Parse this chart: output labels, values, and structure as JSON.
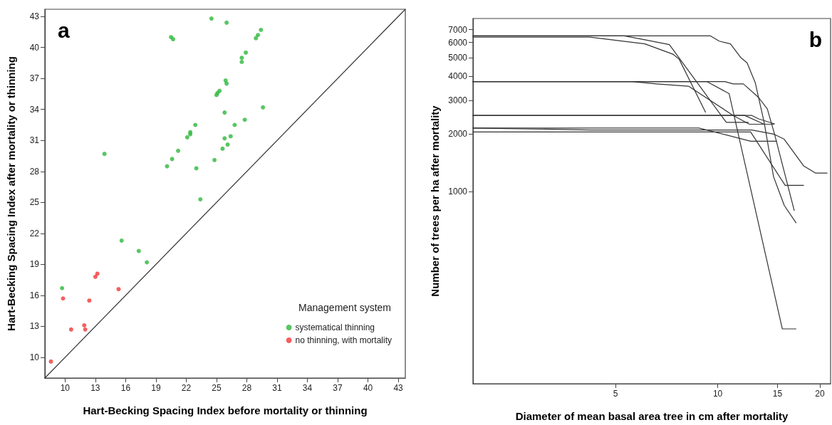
{
  "chart_data": [
    {
      "type": "scatter",
      "xlabel": "Hart-Becking Spacing Index before mortality or thinning",
      "ylabel": "Hart-Becking Spacing Index after mortality or thinning",
      "legend_title": "Management system",
      "legend": "bottom right",
      "marker": "circle",
      "grid": false,
      "annotations": [
        "a"
      ],
      "xlim": [
        8,
        43.7
      ],
      "ylim": [
        8,
        43.7
      ],
      "xticks": [
        10,
        13,
        16,
        19,
        22,
        25,
        28,
        31,
        34,
        37,
        40,
        43
      ],
      "yticks": [
        10,
        13,
        16,
        19,
        22,
        25,
        28,
        31,
        34,
        37,
        40,
        43
      ],
      "series": [
        {
          "name": "systematical thinning",
          "color": "#2eb83c",
          "x": [
            24.5,
            26.0,
            20.5,
            20.7,
            29.4,
            29.1,
            28.9,
            27.9,
            27.5,
            27.5,
            25.9,
            26.0,
            25.3,
            25.1,
            25.0,
            29.6,
            25.8,
            27.8,
            26.8,
            22.9,
            22.4,
            22.4,
            22.1,
            26.4,
            25.8,
            26.1,
            25.6,
            21.2,
            13.9,
            20.6,
            20.1,
            24.8,
            23.0,
            23.4,
            15.6,
            17.3,
            18.1,
            9.7
          ],
          "values": [
            42.8,
            42.4,
            41.0,
            40.8,
            41.7,
            41.2,
            40.9,
            39.5,
            39.0,
            38.6,
            36.8,
            36.5,
            35.8,
            35.6,
            35.4,
            34.2,
            33.7,
            33.0,
            32.5,
            32.5,
            31.8,
            31.6,
            31.3,
            31.4,
            31.2,
            30.6,
            30.2,
            30.0,
            29.7,
            29.2,
            28.5,
            29.1,
            28.3,
            25.3,
            21.3,
            20.3,
            19.2,
            16.7
          ]
        },
        {
          "name": "no thinning, with mortality",
          "color": "#f03838",
          "x": [
            9.8,
            12.4,
            13.0,
            13.2,
            15.3,
            10.6,
            11.9,
            12.0,
            8.6
          ],
          "values": [
            15.7,
            15.5,
            17.8,
            18.1,
            16.6,
            12.7,
            13.1,
            12.7,
            9.6
          ]
        },
        {
          "type": "line",
          "color": "#333333",
          "marker": "none",
          "x": [
            8,
            43.7
          ],
          "values": [
            8,
            43.7
          ]
        }
      ]
    },
    {
      "type": "line",
      "xlabel": "Diameter of mean basal area tree in cm after mortality",
      "ylabel": "Number of trees per ha after mortality",
      "log": "xy",
      "marker": "none",
      "grid": false,
      "legend": false,
      "annotations": [
        "b"
      ],
      "xlim": [
        1.9,
        21.5
      ],
      "ylim": [
        100,
        8000
      ],
      "xticks": [
        5,
        10,
        15,
        20
      ],
      "yticks": [
        1000,
        2000,
        3000,
        4000,
        5000,
        6000,
        7000
      ],
      "series": [
        {
          "color": "#333333",
          "x": [
            1.9,
            5.3,
            6.1,
            7.2,
            10.6,
            12.3
          ],
          "values": [
            6500,
            6500,
            6200,
            5850,
            2300,
            2300
          ]
        },
        {
          "color": "#333333",
          "x": [
            1.9,
            4.2,
            6.1,
            7.4,
            7.7,
            9.2
          ],
          "values": [
            6400,
            6400,
            5900,
            5200,
            4900,
            2600
          ]
        },
        {
          "color": "#333333",
          "x": [
            1.9,
            9.5,
            10.1,
            10.9,
            11.7,
            12.2,
            12.9,
            13.7,
            14.6,
            15.7,
            17.0
          ],
          "values": [
            6500,
            6500,
            6100,
            5900,
            5000,
            4700,
            3700,
            2300,
            1200,
            850,
            690
          ]
        },
        {
          "color": "#333333",
          "x": [
            1.9,
            10.5,
            11.1,
            11.9,
            13.2,
            14.0,
            14.7,
            16.8
          ],
          "values": [
            3750,
            3750,
            3650,
            3650,
            3100,
            2700,
            2000,
            800
          ]
        },
        {
          "color": "#333333",
          "x": [
            1.9,
            5.6,
            6.6,
            8.2,
            11.1,
            12.4,
            14.6
          ],
          "values": [
            3750,
            3750,
            3650,
            3550,
            2500,
            2250,
            2250
          ]
        },
        {
          "color": "#333333",
          "x": [
            1.9,
            9.3,
            10.8,
            15.5,
            17.0
          ],
          "values": [
            3750,
            3750,
            3250,
            193,
            193
          ]
        },
        {
          "color": "#333333",
          "x": [
            1.9,
            12.0,
            13.7,
            14.6
          ],
          "values": [
            2500,
            2500,
            2250,
            2250
          ]
        },
        {
          "color": "#333333",
          "x": [
            1.9,
            12.6,
            13.2,
            14.7
          ],
          "values": [
            2500,
            2500,
            2400,
            2260
          ]
        },
        {
          "color": "#333333",
          "x": [
            1.9,
            8.8,
            12.5,
            14.9
          ],
          "values": [
            2150,
            2150,
            1835,
            1835
          ]
        },
        {
          "color": "#333333",
          "x": [
            1.9,
            4.2,
            12.6,
            14.6,
            15.7,
            17.9,
            19.4,
            21.0
          ],
          "values": [
            2150,
            2100,
            2100,
            2000,
            1880,
            1366,
            1253,
            1253
          ]
        },
        {
          "color": "#333333",
          "x": [
            1.9,
            12.5,
            15.8,
            17.9
          ],
          "values": [
            2050,
            2050,
            1080,
            1080
          ]
        }
      ]
    }
  ]
}
